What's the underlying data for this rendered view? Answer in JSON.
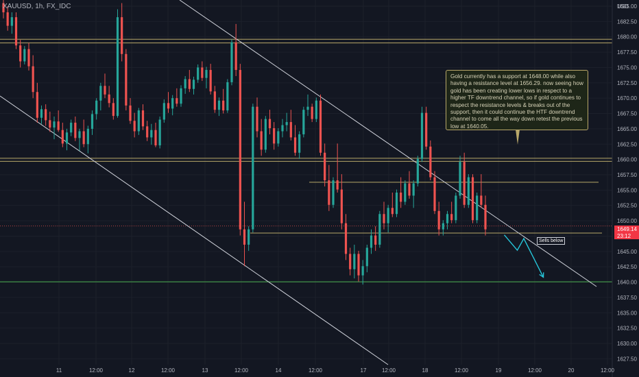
{
  "header": {
    "symbol_title": "XAUUSD, 1h, FX_IDC",
    "currency": "USD"
  },
  "annotation": {
    "text": "Gold currently has a support at 1648.00 while also having a resistance level at 1656.29. now seeing how gold has been creating lower lows in respect to a higher TF downtrend channel, so if gold continues to respect the resistance levels & breaks out of the support, then it could continue the HTF downtrend channel to come all the way down retest the previous low at 1640.05."
  },
  "sells_label": "Sells below",
  "price_badge": {
    "price": "1649.14",
    "countdown": "23:12",
    "color": "#f23645"
  },
  "colors": {
    "up": "#26a69a",
    "down": "#ef5350",
    "level": "#b9a86a",
    "support_green": "#4caf50",
    "projection": "#26c6da",
    "channel": "#d1d4dc"
  },
  "chart_data": {
    "type": "candlestick",
    "title": "XAUUSD, 1h, FX_IDC",
    "y_unit": "USD",
    "ylim": [
      1626,
      1687
    ],
    "y_ticks": [
      1627.5,
      1630.0,
      1632.5,
      1635.0,
      1637.5,
      1640.0,
      1642.5,
      1645.0,
      1647.5,
      1650.0,
      1652.5,
      1655.0,
      1657.5,
      1660.0,
      1662.5,
      1665.0,
      1667.5,
      1670.0,
      1672.5,
      1675.0,
      1677.5,
      1680.0,
      1682.5,
      1685.0
    ],
    "x_tick_labels": [
      "11",
      "12:00",
      "12",
      "12:00",
      "13",
      "12:00",
      "14",
      "12:00",
      "17",
      "12:00",
      "18",
      "12:00",
      "19",
      "12:00",
      "20",
      "12:00"
    ],
    "horizontal_levels": [
      {
        "price": 1679.6,
        "kind": "resistance"
      },
      {
        "price": 1679.0,
        "kind": "resistance"
      },
      {
        "price": 1660.2,
        "kind": "resistance"
      },
      {
        "price": 1659.7,
        "kind": "resistance"
      },
      {
        "price": 1656.29,
        "kind": "resistance"
      },
      {
        "price": 1649.14,
        "kind": "last-price"
      },
      {
        "price": 1648.0,
        "kind": "support"
      },
      {
        "price": 1640.05,
        "kind": "previous-low"
      }
    ],
    "candles_ohlc": [
      [
        1685.5,
        1686.5,
        1683,
        1684
      ],
      [
        1684,
        1685,
        1681,
        1681.8
      ],
      [
        1681.8,
        1684,
        1680.5,
        1683.2
      ],
      [
        1683.2,
        1684,
        1678,
        1678.6
      ],
      [
        1678.6,
        1679.5,
        1675,
        1676
      ],
      [
        1676,
        1678.5,
        1675.5,
        1678
      ],
      [
        1678,
        1679,
        1674.5,
        1675.2
      ],
      [
        1675.2,
        1677,
        1670,
        1671
      ],
      [
        1671,
        1672.5,
        1666,
        1666.8
      ],
      [
        1666.8,
        1668.8,
        1665.8,
        1668.2
      ],
      [
        1668.2,
        1669,
        1665.5,
        1666.4
      ],
      [
        1666.4,
        1667.8,
        1664.5,
        1665.2
      ],
      [
        1665.2,
        1667,
        1663.3,
        1666.2
      ],
      [
        1666.2,
        1668,
        1664.5,
        1664.8
      ],
      [
        1664.8,
        1666,
        1662,
        1662.6
      ],
      [
        1662.6,
        1665,
        1661.5,
        1664.4
      ],
      [
        1664.4,
        1666.5,
        1663.8,
        1666
      ],
      [
        1666,
        1667,
        1663,
        1663.5
      ],
      [
        1663.5,
        1665,
        1661.4,
        1664.6
      ],
      [
        1664.6,
        1666.5,
        1662,
        1662.5
      ],
      [
        1662.5,
        1665.5,
        1661,
        1665
      ],
      [
        1665,
        1668,
        1664,
        1667.4
      ],
      [
        1667.4,
        1670,
        1666.5,
        1669.6
      ],
      [
        1669.6,
        1672.5,
        1668,
        1672
      ],
      [
        1672,
        1674,
        1670,
        1670.6
      ],
      [
        1670.6,
        1672,
        1668.5,
        1669.2
      ],
      [
        1669.2,
        1670,
        1666.5,
        1667.1
      ],
      [
        1667.1,
        1684.5,
        1666.8,
        1683.2
      ],
      [
        1683.2,
        1685.5,
        1676,
        1677.2
      ],
      [
        1677.2,
        1678,
        1668,
        1668.8
      ],
      [
        1668.8,
        1670,
        1665.8,
        1666.3
      ],
      [
        1666.3,
        1667.6,
        1663.6,
        1664.6
      ],
      [
        1664.6,
        1668.4,
        1664,
        1668
      ],
      [
        1668,
        1669,
        1664.8,
        1665.4
      ],
      [
        1665.4,
        1666.3,
        1663,
        1663.6
      ],
      [
        1663.6,
        1665.8,
        1662.4,
        1664.8
      ],
      [
        1664.8,
        1666,
        1662,
        1662.3
      ],
      [
        1662.3,
        1667,
        1661.8,
        1666.5
      ],
      [
        1666.5,
        1669.8,
        1666,
        1669.2
      ],
      [
        1669.2,
        1671,
        1667.6,
        1668.3
      ],
      [
        1668.3,
        1670.5,
        1667.2,
        1670
      ],
      [
        1670,
        1671.6,
        1668.6,
        1669.1
      ],
      [
        1669.1,
        1672.1,
        1668.6,
        1671.6
      ],
      [
        1671.6,
        1673.6,
        1670.7,
        1673.1
      ],
      [
        1673.1,
        1674.6,
        1671,
        1671.5
      ],
      [
        1671.5,
        1673.5,
        1670.6,
        1673
      ],
      [
        1673,
        1675.5,
        1672.5,
        1675
      ],
      [
        1675,
        1676,
        1672.8,
        1673.3
      ],
      [
        1673.3,
        1675.1,
        1671.6,
        1674.6
      ],
      [
        1674.6,
        1675.6,
        1670.6,
        1671.1
      ],
      [
        1671.1,
        1672,
        1667.6,
        1668.1
      ],
      [
        1668.1,
        1670.1,
        1667.1,
        1669.6
      ],
      [
        1669.6,
        1671.5,
        1667.5,
        1668
      ],
      [
        1668,
        1673.1,
        1667.6,
        1672.6
      ],
      [
        1672.6,
        1679.6,
        1672.1,
        1679.1
      ],
      [
        1679.1,
        1682.1,
        1673.6,
        1674.6
      ],
      [
        1674.6,
        1675.6,
        1647.6,
        1648.6
      ],
      [
        1648.6,
        1653.1,
        1642.6,
        1646.1
      ],
      [
        1646.1,
        1649.1,
        1645.1,
        1648.6
      ],
      [
        1648.6,
        1669.1,
        1648.1,
        1668.6
      ],
      [
        1668.6,
        1670.1,
        1663.6,
        1664.6
      ],
      [
        1664.6,
        1666.6,
        1660.6,
        1661.6
      ],
      [
        1661.6,
        1667.1,
        1661.1,
        1666.6
      ],
      [
        1666.6,
        1668.1,
        1664.1,
        1665.1
      ],
      [
        1665.1,
        1666.1,
        1661.6,
        1662.6
      ],
      [
        1662.6,
        1665.1,
        1662.1,
        1664.6
      ],
      [
        1664.6,
        1666.6,
        1663.6,
        1665.6
      ],
      [
        1665.6,
        1667.6,
        1664.6,
        1666.1
      ],
      [
        1666.1,
        1668.1,
        1663.1,
        1663.6
      ],
      [
        1663.6,
        1665.6,
        1660.6,
        1661.1
      ],
      [
        1661.1,
        1664.6,
        1660.1,
        1664.1
      ],
      [
        1664.1,
        1668.6,
        1663.6,
        1668.1
      ],
      [
        1668.1,
        1670.6,
        1667.1,
        1668.6
      ],
      [
        1668.6,
        1669.1,
        1666.1,
        1666.6
      ],
      [
        1666.6,
        1670.1,
        1666.1,
        1669.6
      ],
      [
        1669.6,
        1670.6,
        1660.6,
        1661.1
      ],
      [
        1661.1,
        1662.6,
        1655.6,
        1656.6
      ],
      [
        1656.6,
        1659.1,
        1651.6,
        1652.6
      ],
      [
        1652.6,
        1657.1,
        1652.1,
        1656.6
      ],
      [
        1656.6,
        1662.6,
        1654.6,
        1655.1
      ],
      [
        1655.1,
        1657.6,
        1648.6,
        1649.6
      ],
      [
        1649.6,
        1651.1,
        1643.6,
        1644.6
      ],
      [
        1644.6,
        1645.6,
        1641.1,
        1642.1
      ],
      [
        1642.1,
        1646.1,
        1640.6,
        1644.6
      ],
      [
        1644.6,
        1645.1,
        1640.1,
        1641.1
      ],
      [
        1641.1,
        1643.6,
        1639.6,
        1642.6
      ],
      [
        1642.6,
        1646.1,
        1641.6,
        1645.6
      ],
      [
        1645.6,
        1648.6,
        1644.6,
        1647.6
      ],
      [
        1647.6,
        1649.1,
        1645.1,
        1646.1
      ],
      [
        1646.1,
        1651.6,
        1645.6,
        1651.1
      ],
      [
        1651.1,
        1653.1,
        1648.6,
        1649.6
      ],
      [
        1649.6,
        1652.6,
        1648.1,
        1652.1
      ],
      [
        1652.1,
        1654.6,
        1650.6,
        1651.1
      ],
      [
        1651.1,
        1655.1,
        1650.6,
        1654.6
      ],
      [
        1654.6,
        1657.1,
        1652.1,
        1653.1
      ],
      [
        1653.1,
        1656.6,
        1652.6,
        1656.1
      ],
      [
        1656.1,
        1658.1,
        1653.6,
        1654.1
      ],
      [
        1654.1,
        1656.6,
        1652.1,
        1656.1
      ],
      [
        1656.1,
        1660.6,
        1655.6,
        1660.1
      ],
      [
        1660.1,
        1668.6,
        1659.6,
        1667.6
      ],
      [
        1667.6,
        1668.6,
        1661.6,
        1662.1
      ],
      [
        1662.1,
        1663.1,
        1656.6,
        1657.1
      ],
      [
        1657.1,
        1658.1,
        1651.1,
        1651.6
      ],
      [
        1651.6,
        1653.1,
        1647.6,
        1648.6
      ],
      [
        1648.6,
        1650.1,
        1647.6,
        1649.6
      ],
      [
        1649.6,
        1651.6,
        1648.6,
        1651.1
      ],
      [
        1651.1,
        1653.1,
        1649.6,
        1650.1
      ],
      [
        1650.1,
        1654.6,
        1649.6,
        1654.1
      ],
      [
        1654.1,
        1660.6,
        1653.6,
        1659.6
      ],
      [
        1659.6,
        1661.1,
        1652.1,
        1652.6
      ],
      [
        1652.6,
        1657.6,
        1652.1,
        1657.1
      ],
      [
        1657.1,
        1657.6,
        1649.6,
        1650.1
      ],
      [
        1650.1,
        1654.6,
        1649.6,
        1654.1
      ],
      [
        1654.1,
        1657.6,
        1652.1,
        1652.6
      ],
      [
        1652.6,
        1654.1,
        1647.6,
        1648.6
      ]
    ],
    "projection_path": [
      [
        1647.7,
        1
      ],
      [
        1645.2,
        3
      ],
      [
        1647.1,
        4
      ],
      [
        1640.8,
        7
      ]
    ]
  }
}
